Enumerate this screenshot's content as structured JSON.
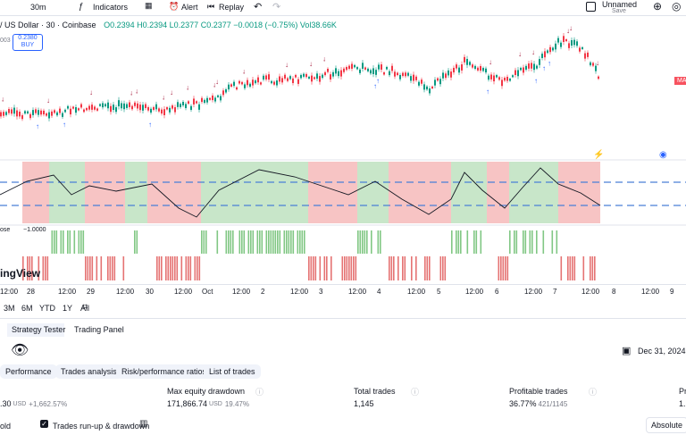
{
  "toolbar": {
    "interval": "30m",
    "indicators": "Indicators",
    "alert": "Alert",
    "replay": "Replay",
    "layout_name": "Unnamed",
    "save": "Save"
  },
  "legend": {
    "symbol": "/ US Dollar · 30 · Coinbase",
    "open": "O0.2394",
    "high": "H0.2394",
    "low": "L0.2377",
    "close": "C0.2377",
    "change": "−0.0018 (−0.75%)",
    "volume": "Vol38.66K",
    "axis_stub": "003",
    "buy_price": "0.2380",
    "buy": "BUY",
    "price_tag": "MA"
  },
  "indicator": {
    "name": "ose",
    "value": "−1.0000",
    "watermark": "ingView"
  },
  "time_axis": [
    "12:00",
    "28",
    "12:00",
    "29",
    "12:00",
    "30",
    "12:00",
    "Oct",
    "12:00",
    "2",
    "12:00",
    "3",
    "12:00",
    "4",
    "12:00",
    "5",
    "12:00",
    "6",
    "12:00",
    "7",
    "12:00",
    "8",
    "12:00",
    "9"
  ],
  "ranges": [
    "3M",
    "6M",
    "YTD",
    "1Y",
    "All"
  ],
  "panel_tabs": [
    "Strategy Tester",
    "Trading Panel"
  ],
  "date_range": "Dec 31, 2024 —",
  "sub_tabs": [
    "Performance",
    "Trades analysis",
    "Risk/performance ratios",
    "List of trades"
  ],
  "metrics": [
    {
      "label": "",
      "value": ".30",
      "unit": "USD",
      "extra": "+1,662.57%"
    },
    {
      "label": "Max equity drawdown",
      "value": "171,866.74",
      "unit": "USD",
      "extra": "19.47%"
    },
    {
      "label": "Total trades",
      "value": "1,145",
      "unit": "",
      "extra": ""
    },
    {
      "label": "Profitable trades",
      "value": "36.77%",
      "unit": "",
      "extra": "421/1145"
    },
    {
      "label": "Pr",
      "value": "1.",
      "unit": "",
      "extra": ""
    }
  ],
  "footer": {
    "hold": "old",
    "runup": "Trades run-up & drawdown",
    "absolute": "Absolute"
  }
}
